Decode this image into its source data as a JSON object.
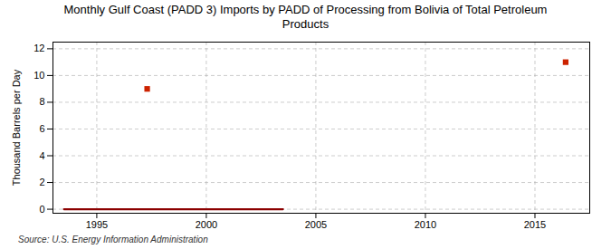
{
  "chart_data": {
    "type": "line",
    "title": "Monthly Gulf Coast (PADD 3) Imports by PADD of Processing from Bolivia of Total Petroleum\nProducts",
    "ylabel": "Thousand Barrels per Day",
    "source": "Source: U.S. Energy Information Administration",
    "series": [
      {
        "type": "line",
        "color": "#8b0000",
        "x": [
          1993.5,
          2003.5
        ],
        "values": [
          0,
          0
        ]
      },
      {
        "type": "scatter",
        "color": "#cc2200",
        "marker": "square",
        "x": [
          1997.3,
          2016.4
        ],
        "values": [
          9,
          11
        ]
      }
    ],
    "xlim": [
      1993.0,
      2017.5
    ],
    "ylim": [
      -0.3,
      12.5
    ],
    "xticks": [
      1995,
      2000,
      2005,
      2010,
      2015
    ],
    "yticks": [
      0,
      2,
      4,
      6,
      8,
      10,
      12
    ],
    "grid": true
  }
}
